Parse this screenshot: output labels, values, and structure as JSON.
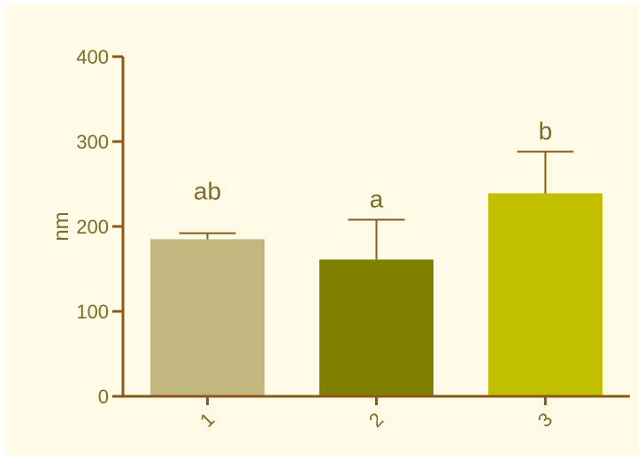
{
  "chart_data": {
    "type": "bar",
    "title": "",
    "xlabel": "",
    "ylabel": "nm",
    "ylim": [
      0,
      400
    ],
    "yticks": [
      0,
      100,
      200,
      300,
      400
    ],
    "grid": false,
    "categories": [
      "1",
      "2",
      "3"
    ],
    "values": [
      185,
      161,
      239
    ],
    "error_plus": [
      7,
      47,
      49
    ],
    "annotations": [
      "ab",
      "a",
      "b"
    ],
    "colors": {
      "bars": [
        "#c2b77f",
        "#7f7f00",
        "#c2be00"
      ],
      "axis": "#8b5a1a",
      "text": "#7f6a2a",
      "background": "#fffbe6"
    }
  }
}
